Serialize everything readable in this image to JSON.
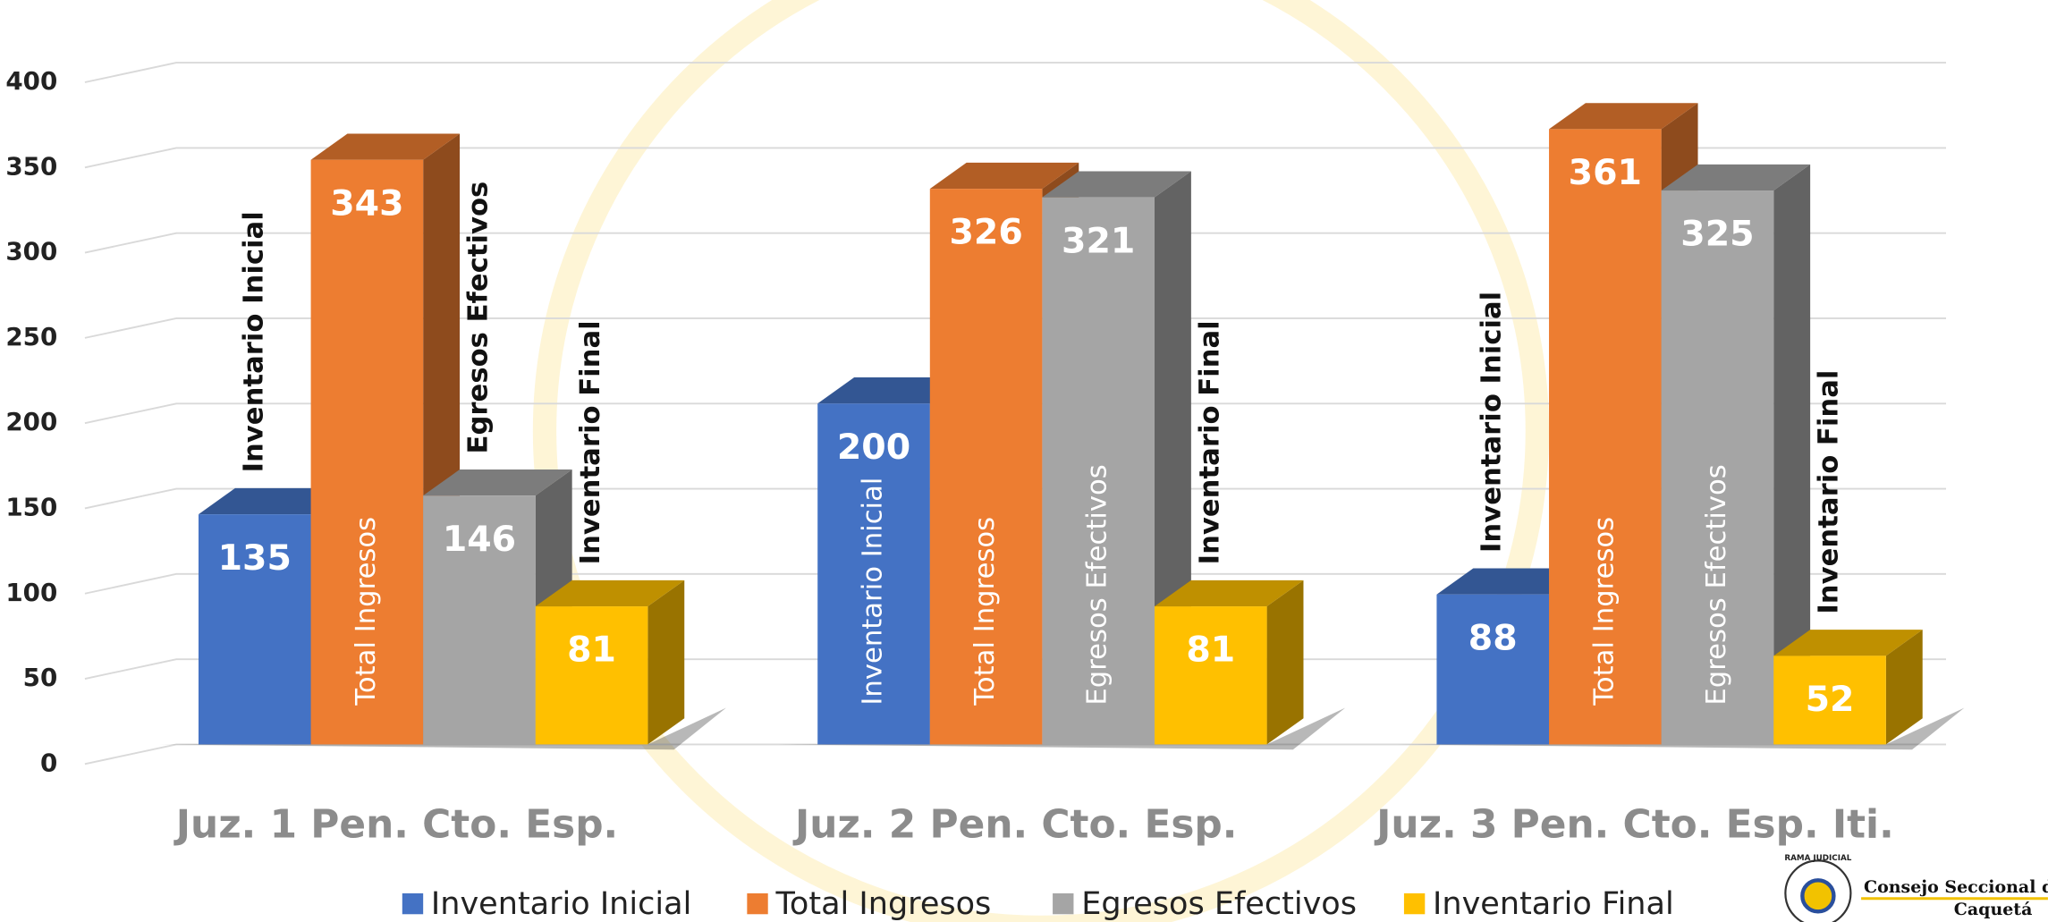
{
  "chart_data": {
    "type": "bar3d",
    "categories": [
      "Juz. 1 Pen. Cto. Esp.",
      "Juz. 2 Pen. Cto. Esp.",
      "Juz. 3 Pen. Cto. Esp. Iti."
    ],
    "series": [
      {
        "name": "Inventario Inicial",
        "color": "#4472c4",
        "values": [
          135,
          200,
          88
        ]
      },
      {
        "name": "Total Ingresos",
        "color": "#ed7d31",
        "values": [
          343,
          326,
          361
        ]
      },
      {
        "name": "Egresos Efectivos",
        "color": "#a5a5a5",
        "values": [
          146,
          321,
          325
        ]
      },
      {
        "name": "Inventario Final",
        "color": "#ffc000",
        "values": [
          81,
          81,
          52
        ]
      }
    ],
    "ylim": [
      0,
      450
    ],
    "yticks": [
      0,
      50,
      100,
      150,
      200,
      250,
      300,
      350,
      400
    ],
    "grid": true,
    "legend": "bottom"
  },
  "logo": {
    "top": "RAMA JUDICIAL",
    "line1": "Consejo Seccional de",
    "line2": "Caquetá"
  }
}
